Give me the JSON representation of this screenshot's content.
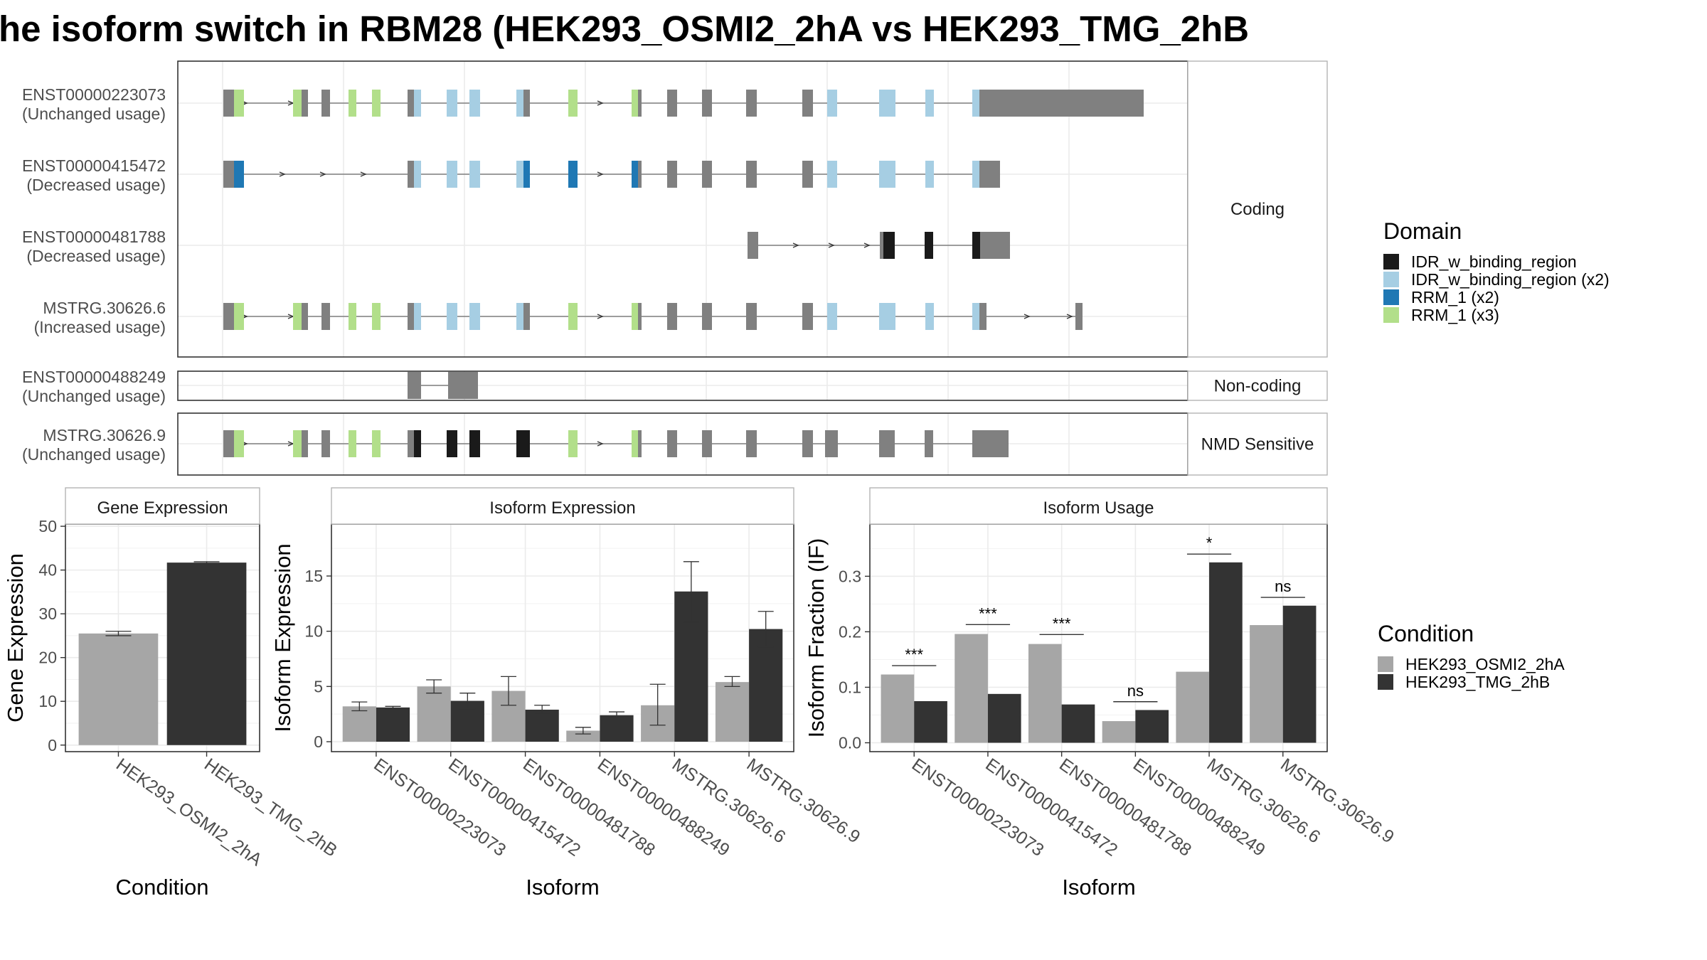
{
  "title": "he isoform switch in RBM28 (HEK293_OSMI2_2hA vs HEK293_TMG_2hB",
  "colors": {
    "intron": "#7f7f7f",
    "exon_plain": "#808080",
    "idr_binding_region": "#1a1a1a",
    "idr_binding_region_x2": "#a6cee3",
    "rrm_1_x2": "#1f78b4",
    "rrm_1_x3": "#b2df8a",
    "cond_a": "#a6a6a6",
    "cond_b": "#333333"
  },
  "structure": {
    "groups": [
      {
        "label": "Coding",
        "transcripts": [
          {
            "id": "ENST00000223073",
            "usage": "(Unchanged usage)"
          },
          {
            "id": "ENST00000415472",
            "usage": "(Decreased usage)"
          },
          {
            "id": "ENST00000481788",
            "usage": "(Decreased usage)"
          },
          {
            "id": "MSTRG.30626.6",
            "usage": "(Increased usage)"
          }
        ]
      },
      {
        "label": "Non-coding",
        "transcripts": [
          {
            "id": "ENST00000488249",
            "usage": "(Unchanged usage)"
          }
        ]
      },
      {
        "label": "NMD Sensitive",
        "transcripts": [
          {
            "id": "MSTRG.30626.9",
            "usage": "(Unchanged usage)"
          }
        ]
      }
    ]
  },
  "domain_legend": {
    "title": "Domain",
    "items": [
      {
        "label": "IDR_w_binding_region",
        "color": "#1a1a1a"
      },
      {
        "label": "IDR_w_binding_region (x2)",
        "color": "#a6cee3"
      },
      {
        "label": "RRM_1 (x2)",
        "color": "#1f78b4"
      },
      {
        "label": "RRM_1 (x3)",
        "color": "#b2df8a"
      }
    ]
  },
  "condition_legend": {
    "title": "Condition",
    "items": [
      {
        "label": "HEK293_OSMI2_2hA",
        "color": "#a6a6a6"
      },
      {
        "label": "HEK293_TMG_2hB",
        "color": "#333333"
      }
    ]
  },
  "chart_data": [
    {
      "type": "bar",
      "title": "Gene Expression",
      "xlabel": "Condition",
      "ylabel": "Gene Expression",
      "categories": [
        "HEK293_OSMI2_2hA",
        "HEK293_TMG_2hB"
      ],
      "values": [
        25.5,
        41.7
      ],
      "errors": [
        [
          25.0,
          26.0
        ],
        [
          41.5,
          41.9
        ]
      ],
      "ylim": [
        -1.5,
        50.5
      ],
      "yticks": [
        0,
        10,
        20,
        30,
        40,
        50
      ]
    },
    {
      "type": "bar",
      "title": "Isoform Expression",
      "xlabel": "Isoform",
      "ylabel": "Isoform Expression",
      "categories": [
        "ENST00000223073",
        "ENST00000415472",
        "ENST00000481788",
        "ENST00000488249",
        "MSTRG.30626.6",
        "MSTRG.30626.9"
      ],
      "series": [
        {
          "name": "HEK293_OSMI2_2hA",
          "values": [
            3.2,
            5.0,
            4.6,
            1.0,
            3.3,
            5.4
          ],
          "errors": [
            [
              2.8,
              3.6
            ],
            [
              4.4,
              5.6
            ],
            [
              3.3,
              5.9
            ],
            [
              0.7,
              1.3
            ],
            [
              1.5,
              5.2
            ],
            [
              5.0,
              5.9
            ]
          ]
        },
        {
          "name": "HEK293_TMG_2hB",
          "values": [
            3.1,
            3.7,
            2.9,
            2.4,
            13.6,
            10.2
          ],
          "errors": [
            [
              2.9,
              3.2
            ],
            [
              3.0,
              4.4
            ],
            [
              2.6,
              3.3
            ],
            [
              2.2,
              2.7
            ],
            [
              10.8,
              16.3
            ],
            [
              8.6,
              11.8
            ]
          ]
        }
      ],
      "ylim": [
        -0.9,
        19.7
      ],
      "yticks": [
        0,
        5,
        10,
        15
      ]
    },
    {
      "type": "bar",
      "title": "Isoform Usage",
      "xlabel": "Isoform",
      "ylabel": "Isoform Fraction (IF)",
      "categories": [
        "ENST00000223073",
        "ENST00000415472",
        "ENST00000481788",
        "ENST00000488249",
        "MSTRG.30626.6",
        "MSTRG.30626.9"
      ],
      "series": [
        {
          "name": "HEK293_OSMI2_2hA",
          "values": [
            0.123,
            0.196,
            0.178,
            0.039,
            0.128,
            0.212
          ]
        },
        {
          "name": "HEK293_TMG_2hB",
          "values": [
            0.075,
            0.088,
            0.069,
            0.059,
            0.325,
            0.247
          ]
        }
      ],
      "significance": [
        "***",
        "***",
        "***",
        "ns",
        "*",
        "ns"
      ],
      "significance_height": [
        0.139,
        0.213,
        0.195,
        0.074,
        0.34,
        0.262
      ],
      "ylim": [
        -0.016,
        0.394
      ],
      "yticks": [
        0.0,
        0.1,
        0.2,
        0.3
      ]
    }
  ]
}
